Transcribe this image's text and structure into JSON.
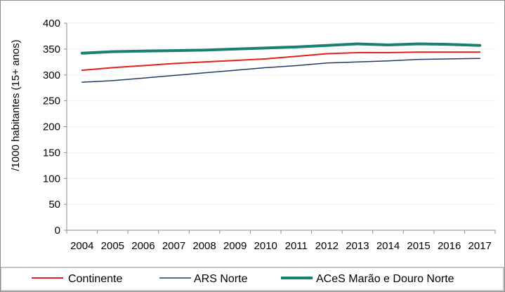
{
  "chart_data": {
    "type": "line",
    "title": "",
    "xlabel": "",
    "ylabel": "/1000 habitantes (15+ anos)",
    "categories": [
      "2004",
      "2005",
      "2006",
      "2007",
      "2008",
      "2009",
      "2010",
      "2011",
      "2012",
      "2013",
      "2014",
      "2015",
      "2016",
      "2017"
    ],
    "ylim": [
      0,
      400
    ],
    "yticks": [
      0,
      50,
      100,
      150,
      200,
      250,
      300,
      350,
      400
    ],
    "grid": true,
    "legend_position": "bottom",
    "series": [
      {
        "name": "Continente",
        "color": "#e32119",
        "width": 2,
        "values": [
          309,
          314,
          318,
          322,
          325,
          328,
          331,
          336,
          341,
          343,
          343,
          344,
          344,
          344
        ]
      },
      {
        "name": "ARS Norte",
        "color": "#1f3864",
        "width": 1.5,
        "values": [
          286,
          289,
          294,
          299,
          304,
          309,
          314,
          318,
          323,
          325,
          327,
          330,
          331,
          332
        ]
      },
      {
        "name": "ACeS Marão e Douro Norte",
        "color": "#1a7f74",
        "width": 4,
        "values": [
          342,
          345,
          346,
          347,
          348,
          350,
          352,
          354,
          357,
          360,
          358,
          360,
          359,
          357
        ]
      }
    ]
  }
}
